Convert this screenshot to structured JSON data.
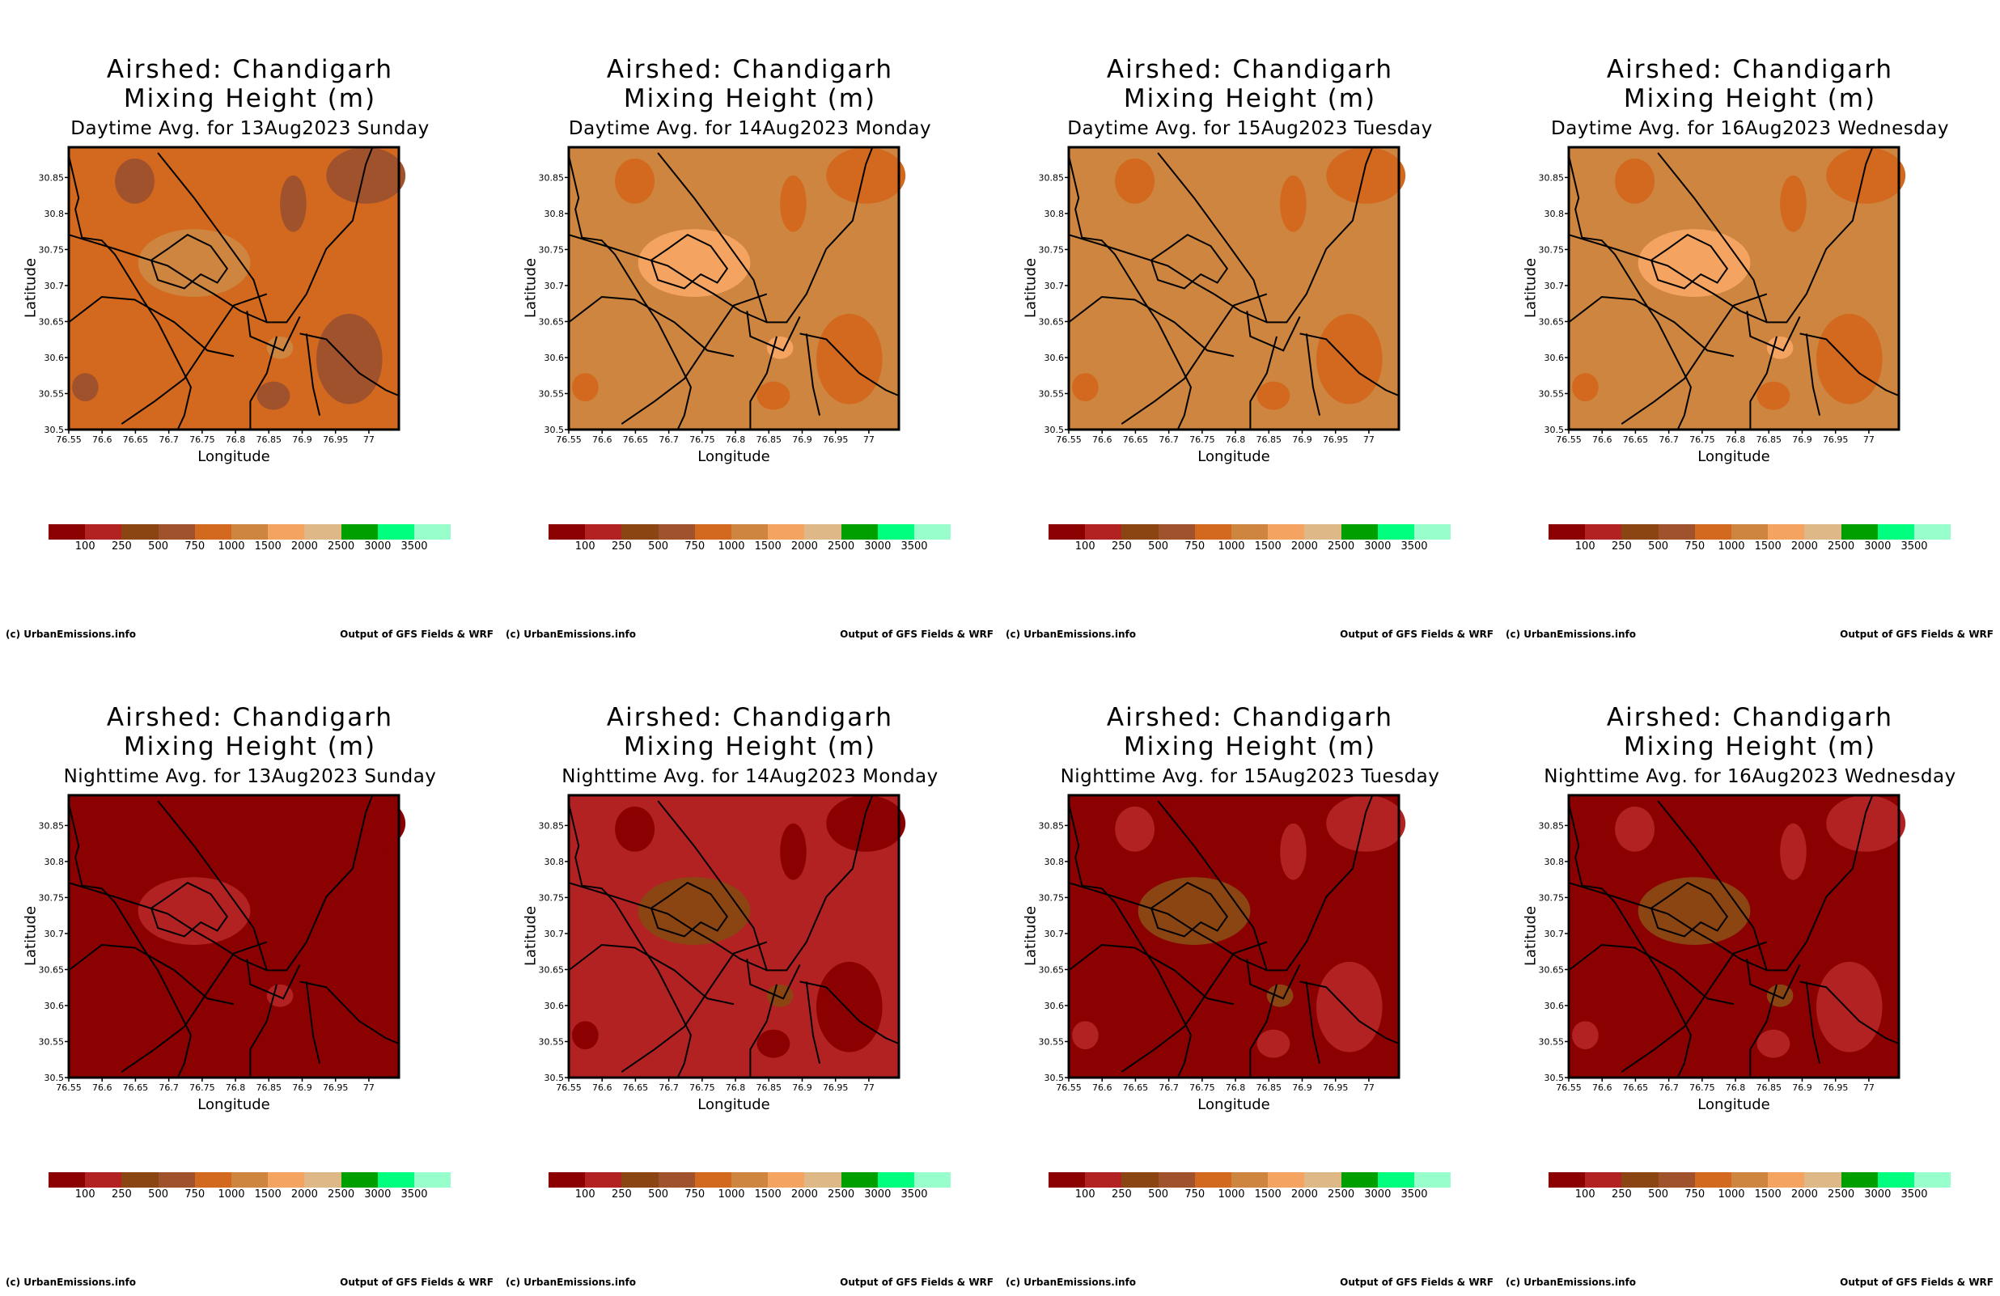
{
  "chart_data": {
    "type": "heatmap",
    "common": {
      "title_line1": "Airshed: Chandigarh",
      "title_line2": "Mixing Height (m)",
      "xlabel": "Longitude",
      "ylabel": "Latitude",
      "xlim": [
        76.55,
        77.045
      ],
      "ylim": [
        30.5,
        30.892
      ],
      "xticks": [
        "76.55",
        "76.6",
        "76.65",
        "76.7",
        "76.75",
        "76.8",
        "76.85",
        "76.9",
        "76.95",
        "77"
      ],
      "yticks": [
        "30.5",
        "30.55",
        "30.6",
        "30.65",
        "30.7",
        "30.75",
        "30.8",
        "30.85"
      ],
      "colorbar": {
        "labels": [
          "100",
          "250",
          "500",
          "750",
          "1000",
          "1500",
          "2000",
          "2500",
          "3000",
          "3500"
        ],
        "colors": [
          "#8b0000",
          "#b22222",
          "#8b4513",
          "#a0522d",
          "#d2691e",
          "#cd853f",
          "#f4a460",
          "#deb887",
          "#009f00",
          "#00ff7f",
          "#98ffcc"
        ]
      },
      "footer_left": "(c) UrbanEmissions.info",
      "footer_right": "Output of GFS Fields & WRF"
    },
    "panels": [
      {
        "subtitle": "Daytime Avg. for 13Aug2023 Sunday",
        "background_class": 4,
        "center_class": 5,
        "patch_class": 3
      },
      {
        "subtitle": "Daytime Avg. for 14Aug2023 Monday",
        "background_class": 5,
        "center_class": 6,
        "patch_class": 4
      },
      {
        "subtitle": "Daytime Avg. for 15Aug2023 Tuesday",
        "background_class": 5,
        "center_class": 5,
        "patch_class": 4
      },
      {
        "subtitle": "Daytime Avg. for 16Aug2023 Wednesday",
        "background_class": 5,
        "center_class": 6,
        "patch_class": 4
      },
      {
        "subtitle": "Nighttime Avg. for 13Aug2023 Sunday",
        "background_class": 0,
        "center_class": 1,
        "patch_class": 0
      },
      {
        "subtitle": "Nighttime Avg. for 14Aug2023 Monday",
        "background_class": 1,
        "center_class": 2,
        "patch_class": 0
      },
      {
        "subtitle": "Nighttime Avg. for 15Aug2023 Tuesday",
        "background_class": 0,
        "center_class": 2,
        "patch_class": 1
      },
      {
        "subtitle": "Nighttime Avg. for 16Aug2023 Wednesday",
        "background_class": 0,
        "center_class": 2,
        "patch_class": 1
      }
    ]
  }
}
